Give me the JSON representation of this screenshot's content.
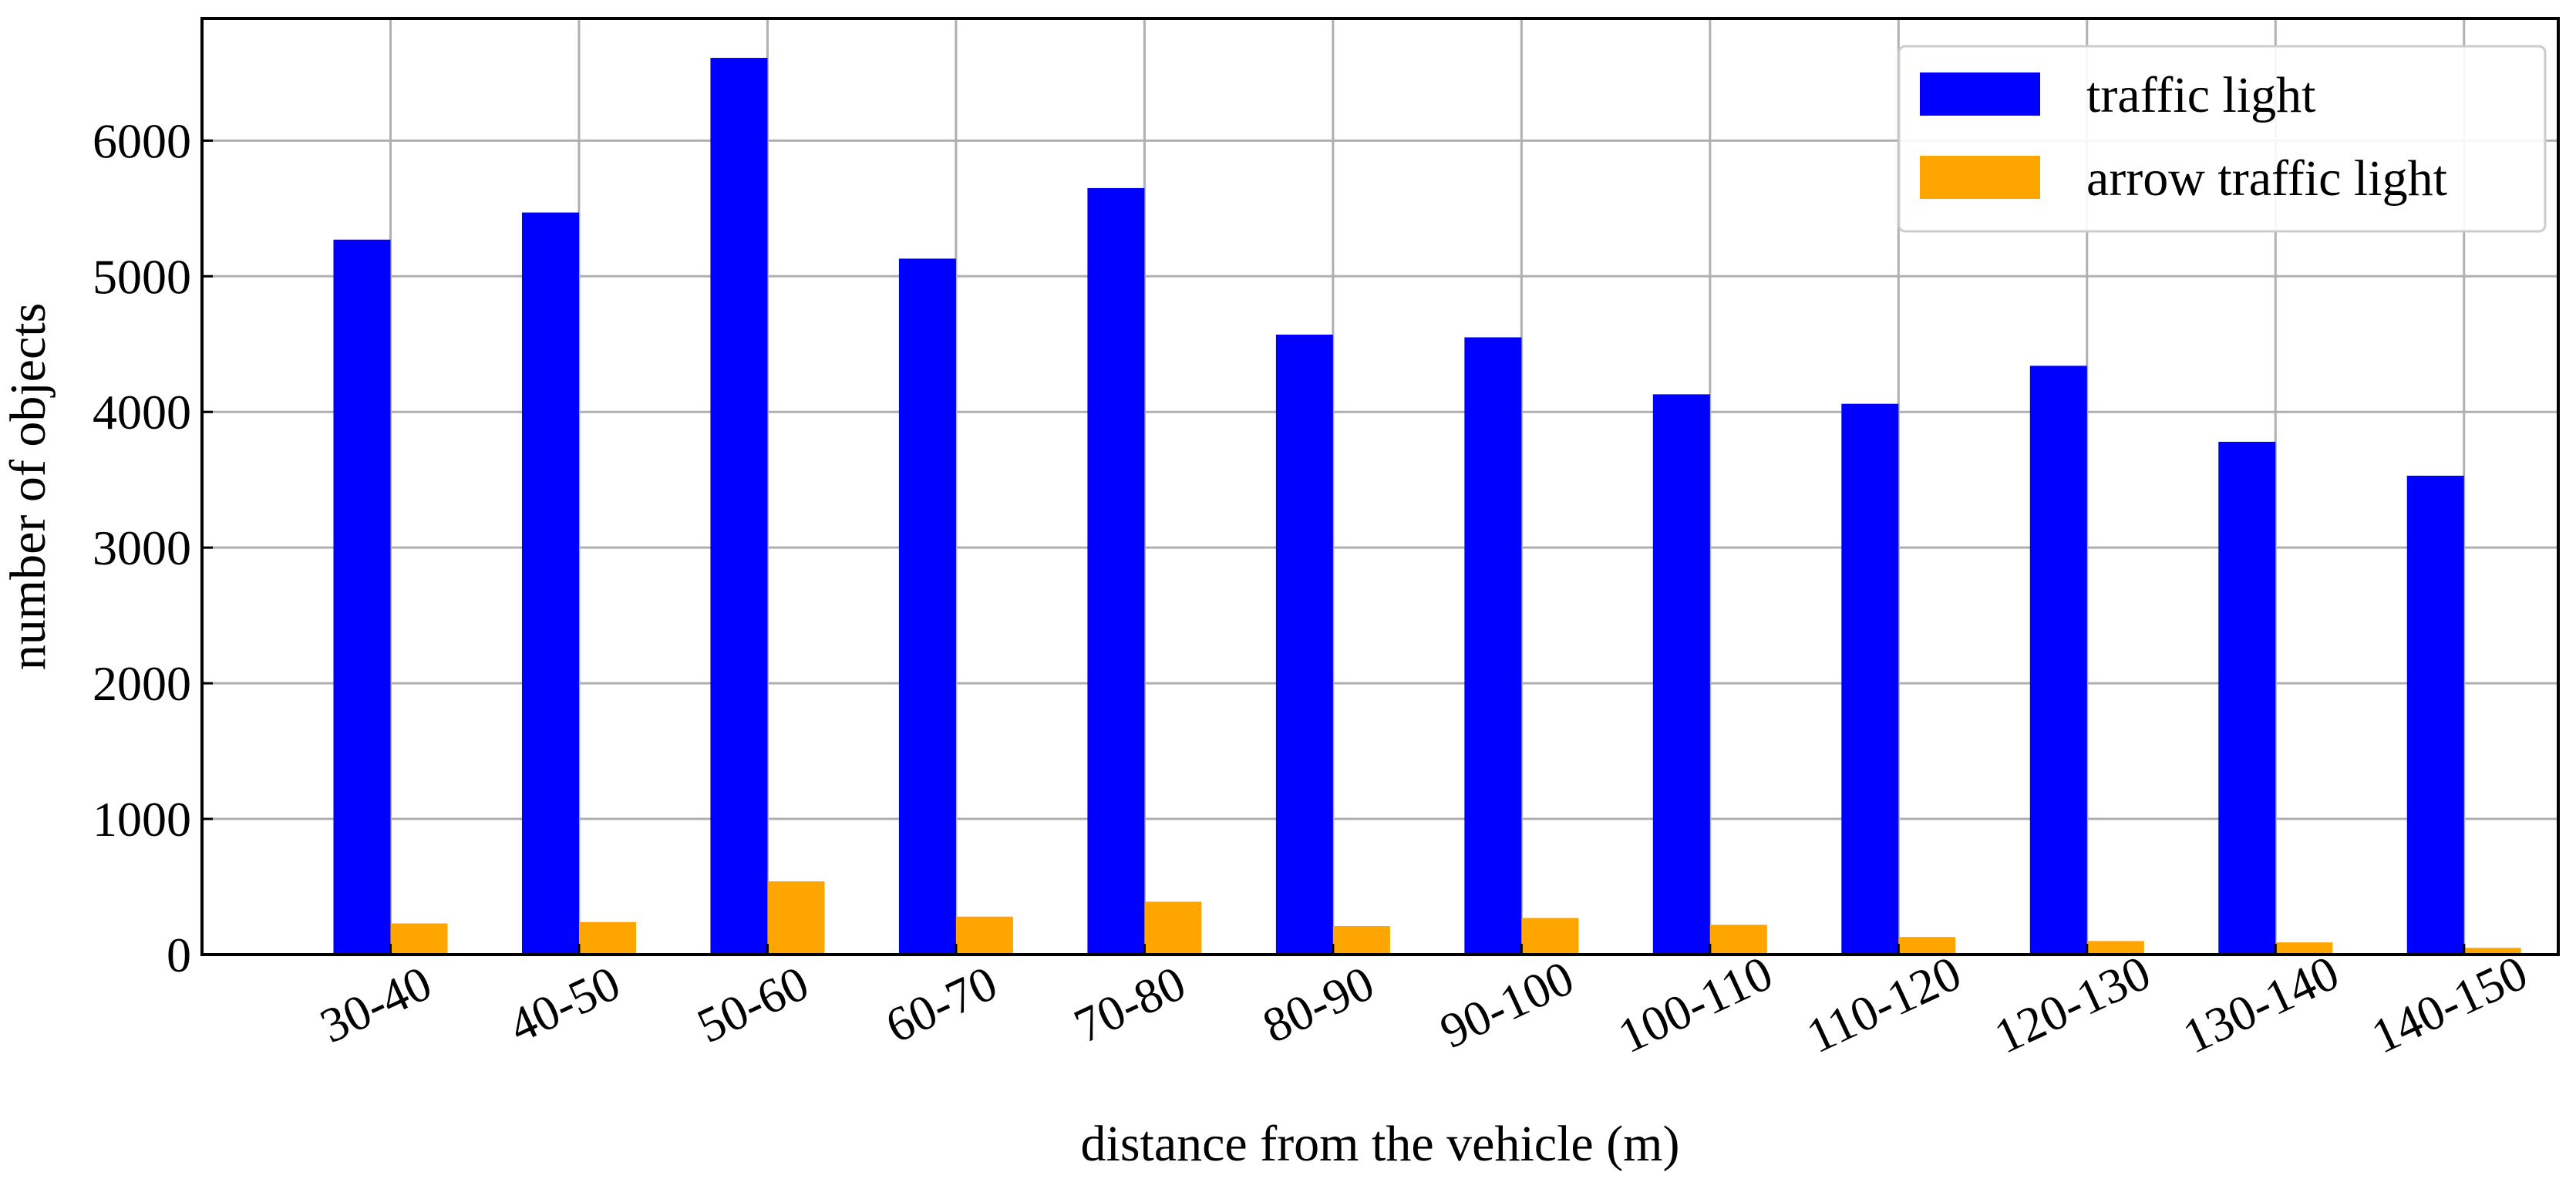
{
  "chart_data": {
    "type": "bar",
    "title": "",
    "xlabel": "distance from the vehicle (m)",
    "ylabel": "number of objects",
    "ylim": [
      0,
      6900
    ],
    "yticks": [
      0,
      1000,
      2000,
      3000,
      4000,
      5000,
      6000
    ],
    "grid": true,
    "legend_position": "top-right",
    "categories": [
      "30-40",
      "40-50",
      "50-60",
      "60-70",
      "70-80",
      "80-90",
      "90-100",
      "100-110",
      "110-120",
      "120-130",
      "130-140",
      "140-150"
    ],
    "series": [
      {
        "name": "traffic light",
        "color": "#0000ff",
        "values": [
          5270,
          5470,
          6610,
          5130,
          5650,
          4570,
          4550,
          4130,
          4060,
          4340,
          3780,
          3530
        ]
      },
      {
        "name": "arrow traffic light",
        "color": "#ffa500",
        "values": [
          230,
          240,
          540,
          280,
          390,
          210,
          270,
          220,
          130,
          100,
          90,
          50
        ]
      }
    ]
  }
}
